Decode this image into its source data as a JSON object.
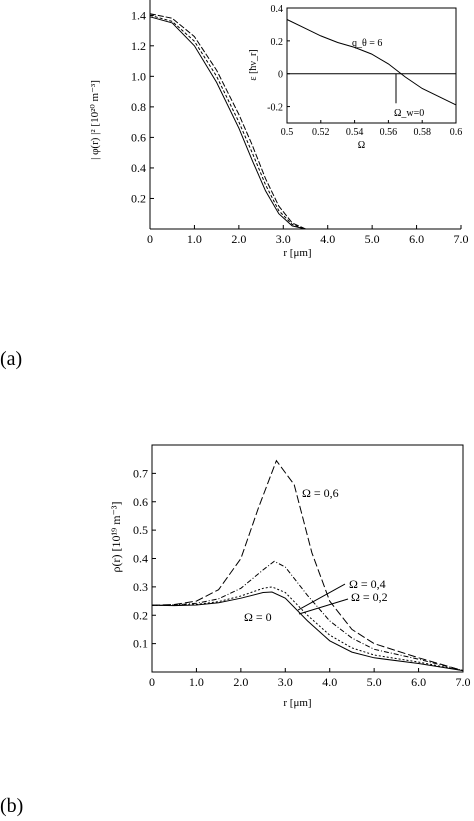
{
  "panel_labels": [
    "(a)",
    "(b)"
  ],
  "chart_data": [
    {
      "panel": "(a)",
      "type": "line",
      "xlabel": "r [μm]",
      "ylabel": "| φ(r) |² [10²⁰ m⁻³]",
      "xlim": [
        0,
        7.0
      ],
      "ylim": [
        0,
        1.5
      ],
      "xticks": [
        "0",
        "1.0",
        "2.0",
        "3.0",
        "4.0",
        "5.0",
        "6.0",
        "7.0"
      ],
      "yticks": [
        "0.2",
        "0.4",
        "0.6",
        "0.8",
        "1.0",
        "1.2",
        "1.4"
      ],
      "series": [
        {
          "values_x": [
            0,
            0.5,
            1.0,
            1.5,
            2.0,
            2.3,
            2.6,
            2.9,
            3.2,
            3.5
          ],
          "values_y": [
            1.39,
            1.35,
            1.2,
            0.96,
            0.66,
            0.45,
            0.25,
            0.1,
            0.02,
            0.0
          ]
        },
        {
          "values_x": [
            0,
            0.5,
            1.0,
            1.5,
            2.0,
            2.3,
            2.6,
            2.9,
            3.2,
            3.5
          ],
          "values_y": [
            1.4,
            1.36,
            1.23,
            1.0,
            0.7,
            0.5,
            0.29,
            0.12,
            0.03,
            0.0
          ]
        },
        {
          "values_x": [
            0,
            0.5,
            1.0,
            1.5,
            2.0,
            2.3,
            2.6,
            2.9,
            3.2,
            3.5
          ],
          "values_y": [
            1.41,
            1.38,
            1.26,
            1.04,
            0.75,
            0.55,
            0.33,
            0.15,
            0.04,
            0.0
          ]
        }
      ],
      "inset": {
        "type": "line",
        "xlabel": "Ω",
        "ylabel": "ε [ħν_r]",
        "xlim": [
          0.5,
          0.6
        ],
        "ylim": [
          -0.3,
          0.4
        ],
        "xticks": [
          "0.5",
          "0.52",
          "0.54",
          "0.56",
          "0.58",
          "0.6"
        ],
        "yticks": [
          "0.4",
          "0.2",
          "0",
          "-0.2"
        ],
        "series": [
          {
            "values_x": [
              0.5,
              0.51,
              0.52,
              0.53,
              0.54,
              0.55,
              0.56,
              0.57,
              0.58,
              0.59,
              0.6
            ],
            "values_y": [
              0.33,
              0.28,
              0.23,
              0.19,
              0.16,
              0.12,
              0.06,
              -0.02,
              -0.09,
              -0.14,
              -0.19
            ]
          }
        ],
        "baseline_y": 0,
        "annotations": [
          {
            "text": "q_θ = 6",
            "x": 0.555,
            "y": 0.18
          },
          {
            "text": "Ω_w=0",
            "x": 0.564,
            "y": -0.22
          }
        ]
      }
    },
    {
      "panel": "(b)",
      "type": "line",
      "xlabel": "r [μm]",
      "ylabel": "ρ(r) [10¹⁹ m⁻³]",
      "xlim": [
        0,
        7.0
      ],
      "ylim": [
        0,
        0.8
      ],
      "xticks": [
        "0",
        "1.0",
        "2.0",
        "3.0",
        "4.0",
        "5.0",
        "6.0",
        "7.0"
      ],
      "yticks": [
        "0.1",
        "0.2",
        "0.3",
        "0.4",
        "0.5",
        "0.6",
        "0.7"
      ],
      "series": [
        {
          "name": "Ω = 0",
          "values_x": [
            0,
            0.5,
            1.0,
            1.5,
            2.0,
            2.5,
            2.7,
            3.0,
            3.5,
            4.0,
            4.5,
            5.0,
            6.0,
            7.0
          ],
          "values_y": [
            0.235,
            0.234,
            0.236,
            0.244,
            0.26,
            0.28,
            0.282,
            0.26,
            0.18,
            0.11,
            0.07,
            0.05,
            0.03,
            0.005
          ]
        },
        {
          "name": "Ω = 0,2",
          "values_x": [
            0,
            0.5,
            1.0,
            1.5,
            2.0,
            2.5,
            2.7,
            3.0,
            3.5,
            4.0,
            4.5,
            5.0,
            6.0,
            7.0
          ],
          "values_y": [
            0.235,
            0.235,
            0.238,
            0.248,
            0.268,
            0.295,
            0.3,
            0.28,
            0.2,
            0.13,
            0.085,
            0.06,
            0.035,
            0.005
          ]
        },
        {
          "name": "Ω = 0,4",
          "values_x": [
            0,
            0.5,
            1.0,
            1.5,
            2.0,
            2.5,
            2.75,
            3.0,
            3.5,
            4.0,
            4.5,
            5.0,
            6.0,
            7.0
          ],
          "values_y": [
            0.235,
            0.236,
            0.242,
            0.258,
            0.295,
            0.36,
            0.39,
            0.37,
            0.27,
            0.18,
            0.12,
            0.08,
            0.045,
            0.005
          ]
        },
        {
          "name": "Ω = 0,6",
          "values_x": [
            0,
            0.5,
            1.0,
            1.5,
            2.0,
            2.4,
            2.8,
            3.2,
            3.6,
            4.0,
            4.5,
            5.0,
            6.0,
            7.0
          ],
          "values_y": [
            0.235,
            0.238,
            0.25,
            0.29,
            0.4,
            0.58,
            0.745,
            0.66,
            0.42,
            0.25,
            0.15,
            0.1,
            0.05,
            0.005
          ]
        }
      ]
    }
  ]
}
